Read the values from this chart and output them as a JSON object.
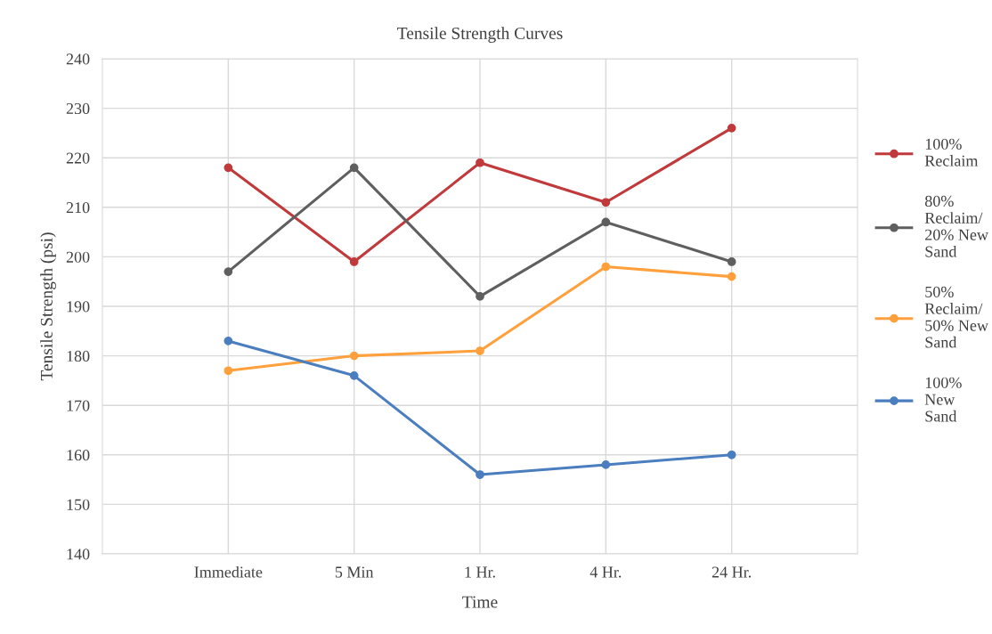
{
  "chart_data": {
    "type": "line",
    "title": "Tensile Strength Curves",
    "xlabel": "Time",
    "ylabel": "Tensile Strength (psi)",
    "categories": [
      "Immediate",
      "5 Min",
      "1 Hr.",
      "4 Hr.",
      "24 Hr."
    ],
    "series": [
      {
        "name": "100%\nReclaim",
        "color": "#c0393b",
        "values": [
          218,
          199,
          219,
          211,
          226
        ]
      },
      {
        "name": "80%\nReclaim/\n20% New\nSand",
        "color": "#5f5f5f",
        "values": [
          197,
          218,
          192,
          207,
          199
        ]
      },
      {
        "name": "50%\nReclaim/\n50% New\nSand",
        "color": "#ffa03c",
        "values": [
          177,
          180,
          181,
          198,
          196
        ]
      },
      {
        "name": "100%\nNew\nSand",
        "color": "#4a7ebf",
        "values": [
          183,
          176,
          156,
          158,
          160
        ]
      }
    ],
    "ylim": [
      140,
      240
    ],
    "yticks": [
      140,
      150,
      160,
      170,
      180,
      190,
      200,
      210,
      220,
      230,
      240
    ],
    "grid": true,
    "legend": "right",
    "marker": "circle",
    "line_style": "solid"
  }
}
